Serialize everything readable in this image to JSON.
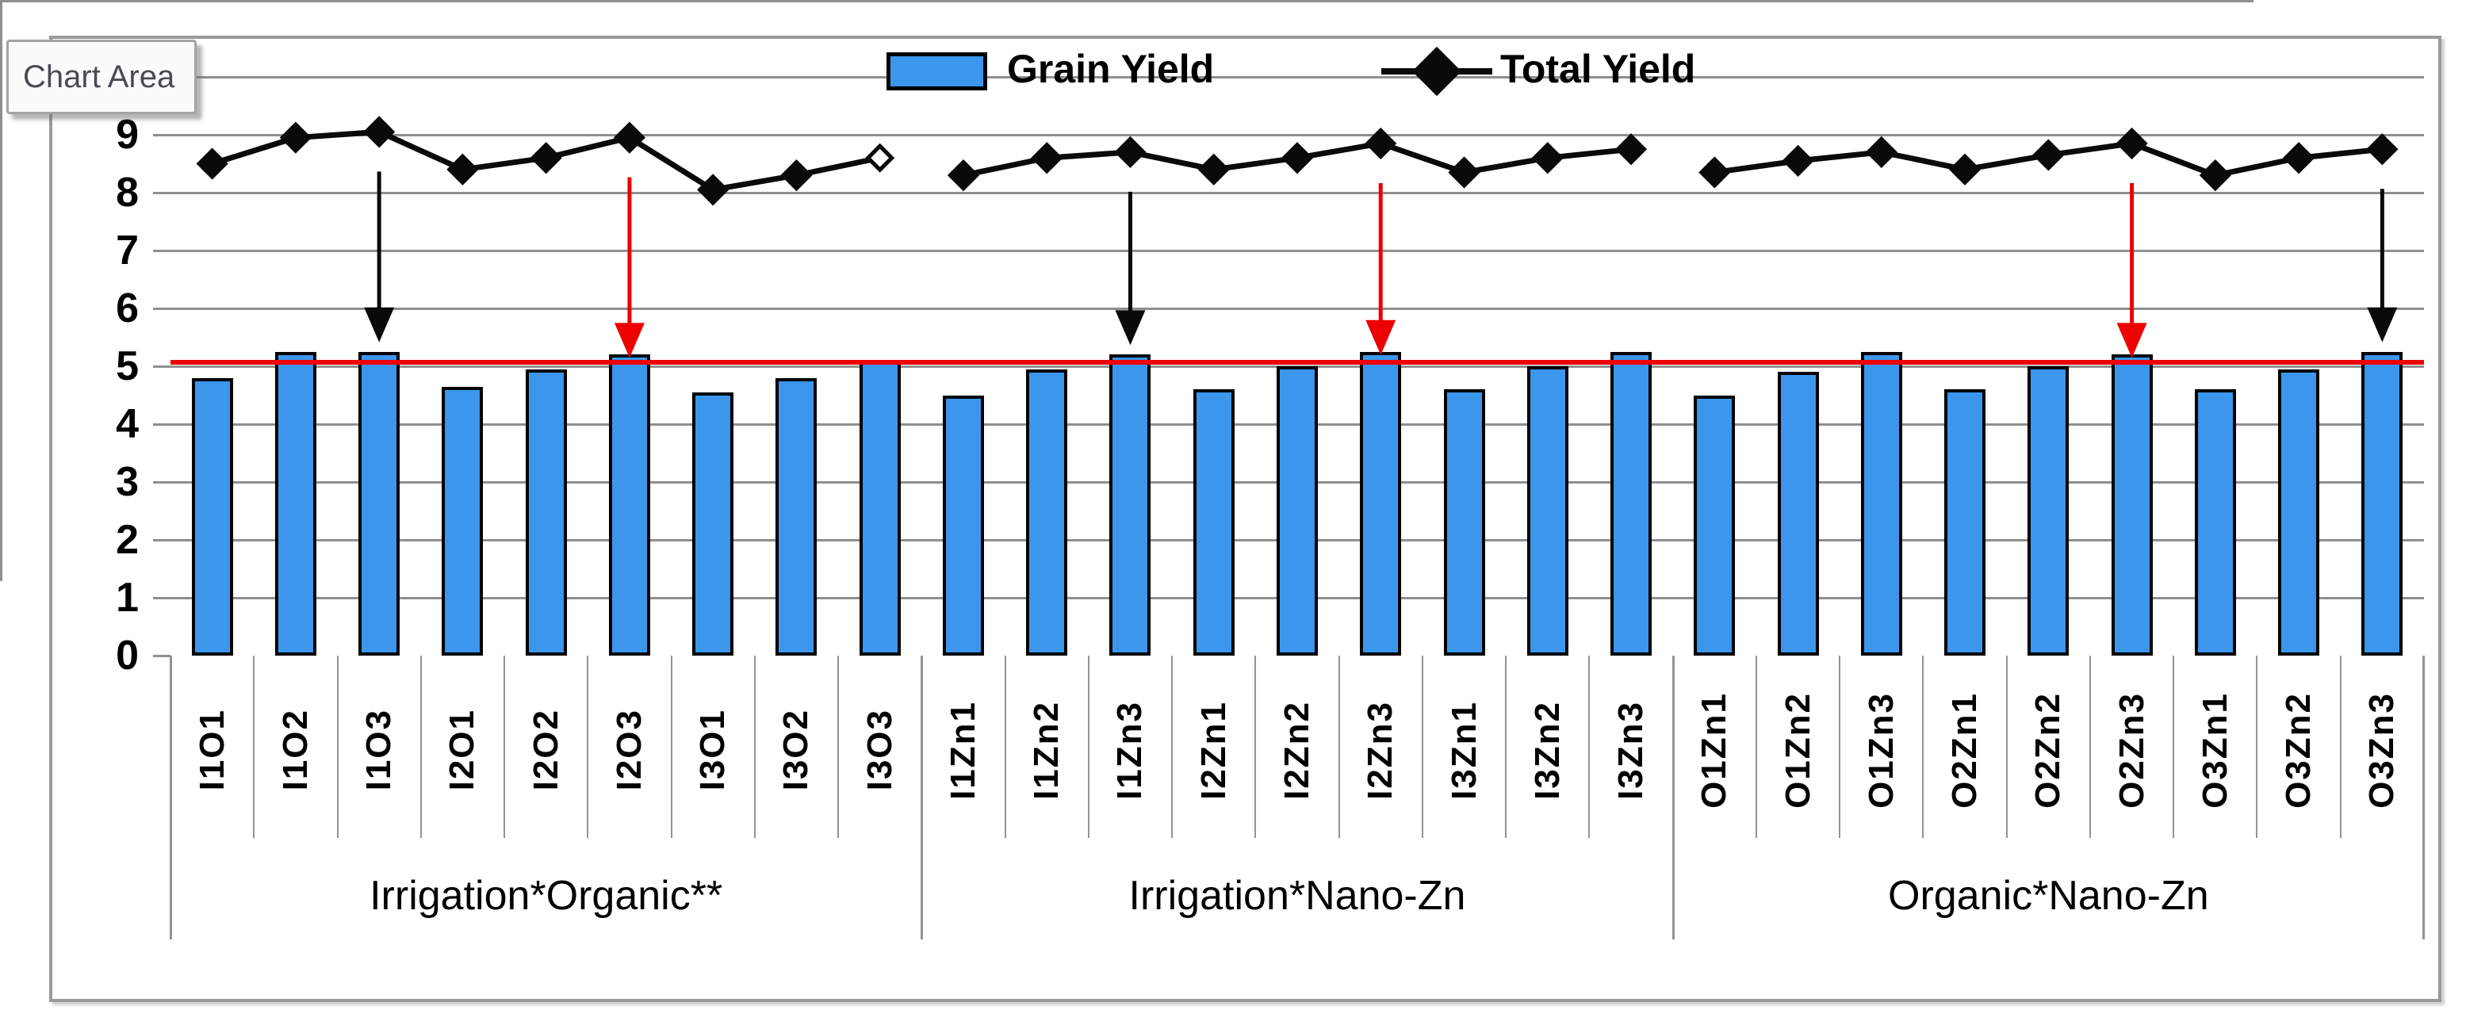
{
  "tooltip": {
    "label": "Chart Area"
  },
  "legend": {
    "items": [
      {
        "label": "Grain Yield",
        "type": "bar"
      },
      {
        "label": "Total Yield",
        "type": "line"
      }
    ]
  },
  "chart_data": {
    "type": "bar",
    "subtype": "bar-line-combo",
    "categories": [
      "I1O1",
      "I1O2",
      "I1O3",
      "I2O1",
      "I2O2",
      "I2O3",
      "I3O1",
      "I3O2",
      "I3O3",
      "I1Zn1",
      "I1Zn2",
      "I1Zn3",
      "I2Zn1",
      "I2Zn2",
      "I2Zn3",
      "I3Zn1",
      "I3Zn2",
      "I3Zn3",
      "O1Zn1",
      "O1Zn2",
      "O1Zn3",
      "O2Zn1",
      "O2Zn2",
      "O2Zn3",
      "O3Zn1",
      "O3Zn2",
      "O3Zn3"
    ],
    "series": [
      {
        "name": "Grain Yield",
        "type": "bar",
        "color": "#3B96EC",
        "values": [
          4.8,
          5.25,
          5.25,
          4.65,
          4.95,
          5.2,
          4.55,
          4.8,
          5.1,
          4.5,
          4.95,
          5.2,
          4.6,
          5.0,
          5.25,
          4.6,
          5.0,
          5.25,
          4.5,
          4.9,
          5.25,
          4.6,
          5.0,
          5.2,
          4.6,
          4.95,
          5.25
        ]
      },
      {
        "name": "Total Yield",
        "type": "line",
        "color": "#0a0a0a",
        "marker": "diamond",
        "values": [
          8.5,
          8.95,
          9.05,
          8.4,
          8.6,
          8.95,
          8.05,
          8.3,
          8.6,
          8.3,
          8.6,
          8.7,
          8.4,
          8.6,
          8.85,
          8.35,
          8.6,
          8.75,
          8.35,
          8.55,
          8.7,
          8.4,
          8.65,
          8.85,
          8.3,
          8.6,
          8.75
        ],
        "open_marker_category": "I3O3",
        "segment_breaks_after": [
          "I3O3",
          "I3Zn3"
        ]
      }
    ],
    "groups": [
      {
        "label": "Irrigation*Organic**",
        "start": 0,
        "end": 8
      },
      {
        "label": "Irrigation*Nano-Zn",
        "start": 9,
        "end": 17
      },
      {
        "label": "Organic*Nano-Zn",
        "start": 18,
        "end": 26
      }
    ],
    "y_axis": {
      "min": 0,
      "max": 10,
      "major_unit": 1,
      "tick_labels": [
        "0",
        "1",
        "2",
        "3",
        "4",
        "5",
        "6",
        "7",
        "8",
        "9"
      ]
    },
    "reference_line": {
      "value": 5.07,
      "color": "#EC0000"
    },
    "annotations": [
      {
        "category": "I1O3",
        "type": "down-arrow",
        "color": "#0a0a0a"
      },
      {
        "category": "I2O3",
        "type": "down-arrow",
        "color": "#EC0000"
      },
      {
        "category": "I1Zn3",
        "type": "down-arrow",
        "color": "#0a0a0a"
      },
      {
        "category": "I2Zn3",
        "type": "down-arrow",
        "color": "#EC0000"
      },
      {
        "category": "O2Zn3",
        "type": "down-arrow",
        "color": "#EC0000"
      },
      {
        "category": "O3Zn3",
        "type": "down-arrow",
        "color": "#0a0a0a"
      }
    ],
    "legend_position": "top",
    "grid": true
  }
}
